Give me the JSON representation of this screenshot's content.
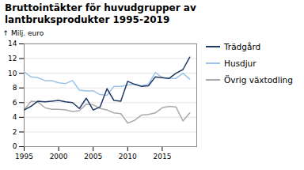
{
  "chart_data": {
    "type": "line",
    "title": "Bruttointäkter för huvudgrupper av\nlantbruksprodukter 1995-2019",
    "ylabel": "Milj. euro",
    "x": [
      1995,
      1996,
      1997,
      1998,
      1999,
      2000,
      2001,
      2002,
      2003,
      2004,
      2005,
      2006,
      2007,
      2008,
      2009,
      2010,
      2011,
      2012,
      2013,
      2014,
      2015,
      2016,
      2017,
      2018,
      2019
    ],
    "series": [
      {
        "name": "Trädgård",
        "color": "#1f3864",
        "values": [
          5.0,
          5.5,
          6.2,
          6.1,
          6.2,
          6.3,
          6.1,
          6.0,
          5.2,
          6.6,
          5.0,
          5.4,
          7.9,
          6.3,
          6.2,
          8.9,
          8.5,
          8.2,
          8.3,
          9.5,
          9.4,
          9.3,
          10.0,
          10.5,
          12.2
        ]
      },
      {
        "name": "Husdjur",
        "color": "#9dc3e6",
        "values": [
          10.2,
          9.5,
          9.4,
          9.0,
          9.0,
          8.7,
          8.6,
          9.0,
          7.7,
          7.6,
          7.6,
          7.1,
          7.0,
          8.2,
          8.2,
          8.4,
          8.5,
          8.3,
          8.5,
          10.1,
          9.4,
          9.3,
          9.3,
          10.0,
          9.2
        ]
      },
      {
        "name": "Övrig växtodling",
        "color": "#aaaaaa",
        "values": [
          5.0,
          6.2,
          6.1,
          5.3,
          5.1,
          5.1,
          5.0,
          4.8,
          4.9,
          5.8,
          5.7,
          5.2,
          5.0,
          4.6,
          4.5,
          3.2,
          3.6,
          4.3,
          4.4,
          4.6,
          5.3,
          5.5,
          5.4,
          3.5,
          4.6
        ]
      }
    ],
    "xlim": [
      1995,
      2020
    ],
    "xticks": [
      1995,
      2000,
      2005,
      2010,
      2015
    ],
    "ylim": [
      0,
      14
    ],
    "yticks": [
      0,
      2,
      4,
      6,
      8,
      10,
      12,
      14
    ],
    "grid": true,
    "legend": "right"
  }
}
